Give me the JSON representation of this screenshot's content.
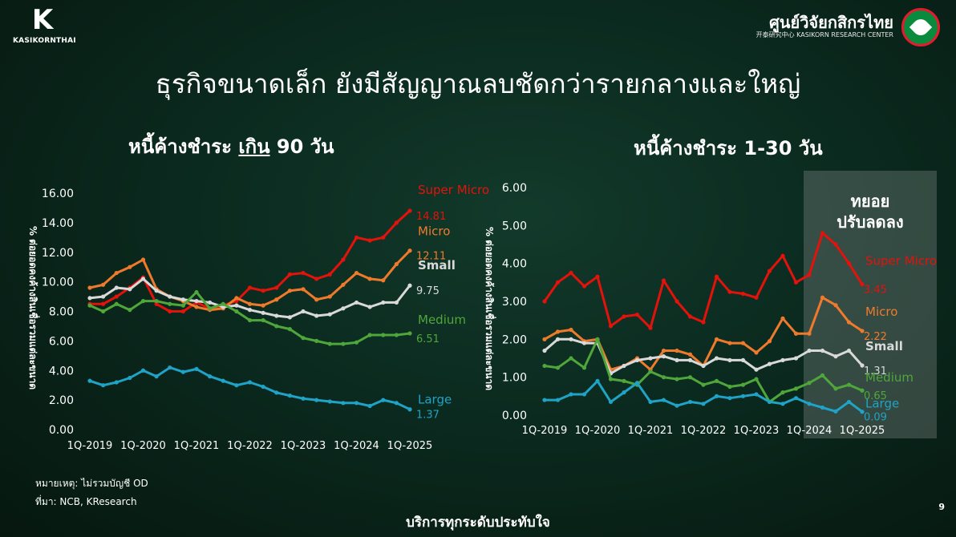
{
  "header": {
    "left_logo_glyph": "K",
    "left_logo_text": "KASIKORNTHAI",
    "right_logo_name": "ศูนย์วิจัยกสิกรไทย",
    "right_logo_sub": "开泰研究中心  KASIKORN RESEARCH CENTER"
  },
  "title": "ธุรกิจขนาดเล็ก ยังมีสัญญาณลบชัดกว่ารายกลางและใหญ่",
  "left_title_a": "หนี้ค้างชำระ ",
  "left_title_b": "เกิน",
  "left_title_c": " 90 วัน",
  "right_title": "หนี้ค้างชำระ 1-30 วัน",
  "box_label_1": "ทยอย",
  "box_label_2": "ปรับลดลง",
  "note": "หมายเหตุ: ไม่รวมบัญชี OD",
  "source": "ที่มา: NCB, KResearch",
  "footer": "บริการทุกระดับประทับใจ",
  "page_number": "9",
  "colors": {
    "super_micro": "#e3120b",
    "micro": "#f07a2c",
    "small": "#d9d9d9",
    "medium": "#4fa63a",
    "large": "#1fa3c6"
  },
  "chart_data": [
    {
      "type": "line",
      "ylabel": "% ต่อยอดคงค้างสินเชื่อรวมแต่ละขนาด",
      "ylim": [
        0,
        16
      ],
      "yticks": [
        "0.00",
        "2.00",
        "4.00",
        "6.00",
        "8.00",
        "10.00",
        "12.00",
        "14.00",
        "16.00"
      ],
      "xticks": [
        "1Q-2019",
        "1Q-2020",
        "1Q-2021",
        "1Q-2022",
        "1Q-2023",
        "1Q-2024",
        "1Q-2025"
      ],
      "n_quarters": 25,
      "series": [
        {
          "name": "Super Micro",
          "end_label": "14.81",
          "key": "super_micro",
          "values": [
            8.5,
            8.5,
            9.0,
            9.6,
            10.3,
            8.5,
            8.0,
            8.0,
            8.6,
            8.2,
            8.4,
            8.7,
            9.6,
            9.4,
            9.6,
            10.5,
            10.6,
            10.2,
            10.5,
            11.5,
            13.0,
            12.8,
            13.0,
            14.0,
            14.81
          ]
        },
        {
          "name": "Micro",
          "end_label": "12.11",
          "key": "micro",
          "values": [
            9.6,
            9.8,
            10.6,
            11.0,
            11.5,
            9.5,
            9.0,
            8.7,
            8.3,
            8.1,
            8.2,
            8.9,
            8.5,
            8.4,
            8.8,
            9.4,
            9.5,
            8.8,
            9.0,
            9.8,
            10.6,
            10.2,
            10.1,
            11.2,
            12.11
          ]
        },
        {
          "name": "Small",
          "end_label": "9.75",
          "key": "small",
          "values": [
            8.9,
            9.0,
            9.6,
            9.5,
            10.2,
            9.4,
            9.0,
            8.8,
            8.7,
            8.6,
            8.3,
            8.4,
            8.1,
            7.9,
            7.7,
            7.6,
            8.0,
            7.7,
            7.8,
            8.2,
            8.6,
            8.3,
            8.6,
            8.6,
            9.75
          ]
        },
        {
          "name": "Medium",
          "end_label": "6.51",
          "key": "medium",
          "values": [
            8.4,
            8.0,
            8.5,
            8.1,
            8.7,
            8.7,
            8.5,
            8.4,
            9.3,
            8.2,
            8.5,
            8.0,
            7.4,
            7.4,
            7.0,
            6.8,
            6.2,
            6.0,
            5.8,
            5.8,
            5.9,
            6.4,
            6.4,
            6.4,
            6.51
          ]
        },
        {
          "name": "Large",
          "end_label": "1.37",
          "key": "large",
          "values": [
            3.3,
            3.0,
            3.2,
            3.5,
            4.0,
            3.6,
            4.2,
            3.9,
            4.1,
            3.6,
            3.3,
            3.0,
            3.2,
            2.9,
            2.5,
            2.3,
            2.1,
            2.0,
            1.9,
            1.8,
            1.8,
            1.6,
            2.0,
            1.8,
            1.37
          ]
        }
      ]
    },
    {
      "type": "line",
      "ylabel": "% ต่อยอดคงค้างสินเชื่อรวมแต่ละขนาด",
      "ylim": [
        0,
        6
      ],
      "yticks": [
        "0.00",
        "1.00",
        "2.00",
        "3.00",
        "4.00",
        "5.00",
        "6.00"
      ],
      "xticks": [
        "1Q-2019",
        "1Q-2020",
        "1Q-2021",
        "1Q-2022",
        "1Q-2023",
        "1Q-2024",
        "1Q-2025"
      ],
      "n_quarters": 25,
      "series": [
        {
          "name": "Super Micro",
          "end_label": "3.45",
          "key": "super_micro",
          "values": [
            3.0,
            3.5,
            3.75,
            3.4,
            3.65,
            2.35,
            2.6,
            2.65,
            2.3,
            3.55,
            3.0,
            2.6,
            2.45,
            3.65,
            3.25,
            3.2,
            3.1,
            3.8,
            4.2,
            3.5,
            3.7,
            4.8,
            4.5,
            4.0,
            3.45
          ]
        },
        {
          "name": "Micro",
          "end_label": "2.22",
          "key": "micro",
          "values": [
            2.0,
            2.2,
            2.25,
            1.95,
            2.0,
            1.2,
            1.3,
            1.5,
            1.2,
            1.7,
            1.7,
            1.6,
            1.3,
            2.0,
            1.9,
            1.9,
            1.65,
            1.95,
            2.55,
            2.15,
            2.15,
            3.1,
            2.9,
            2.45,
            2.22
          ]
        },
        {
          "name": "Small",
          "end_label": "1.31",
          "key": "small",
          "values": [
            1.7,
            2.0,
            2.0,
            1.9,
            1.9,
            1.1,
            1.3,
            1.45,
            1.5,
            1.55,
            1.45,
            1.45,
            1.3,
            1.5,
            1.45,
            1.45,
            1.2,
            1.35,
            1.45,
            1.5,
            1.7,
            1.7,
            1.55,
            1.7,
            1.31
          ]
        },
        {
          "name": "Medium",
          "end_label": "0.65",
          "key": "medium",
          "values": [
            1.3,
            1.25,
            1.5,
            1.25,
            2.0,
            0.95,
            0.9,
            0.8,
            1.15,
            1.0,
            0.95,
            1.0,
            0.8,
            0.9,
            0.75,
            0.8,
            0.95,
            0.35,
            0.6,
            0.7,
            0.85,
            1.05,
            0.7,
            0.8,
            0.65
          ]
        },
        {
          "name": "Large",
          "end_label": "0.09",
          "key": "large",
          "values": [
            0.4,
            0.4,
            0.55,
            0.55,
            0.9,
            0.35,
            0.6,
            0.85,
            0.35,
            0.4,
            0.25,
            0.35,
            0.3,
            0.5,
            0.45,
            0.5,
            0.55,
            0.35,
            0.3,
            0.45,
            0.3,
            0.2,
            0.1,
            0.35,
            0.09
          ]
        }
      ]
    }
  ]
}
